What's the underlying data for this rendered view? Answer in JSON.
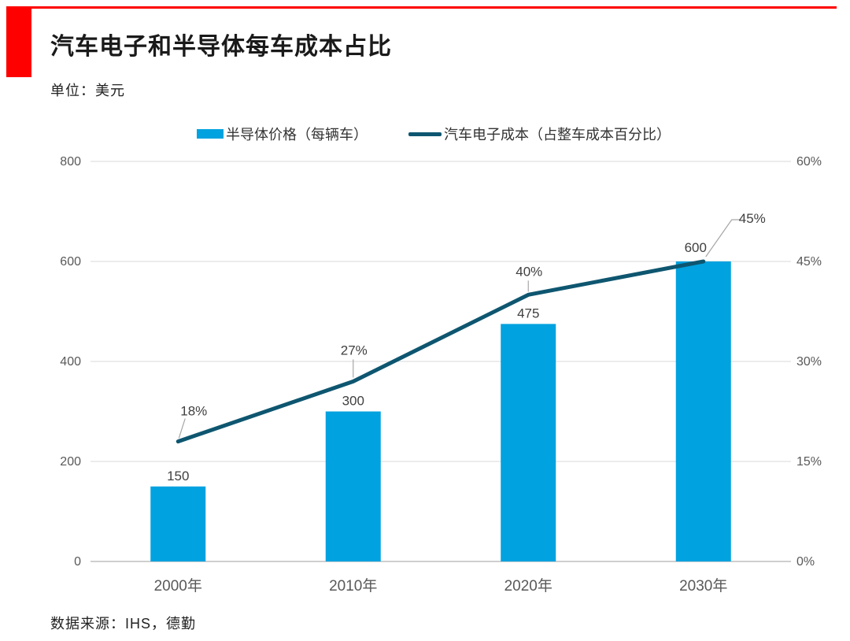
{
  "page": {
    "title": "汽车电子和半导体每车成本占比",
    "unit_label": "单位：美元",
    "source": "数据来源：IHS，德勤"
  },
  "legend": {
    "items": [
      {
        "swatch": "bar-swatch",
        "label": "半导体价格（每辆车）"
      },
      {
        "swatch": "line-swatch",
        "label": "汽车电子成本（占整车成本百分比）"
      }
    ]
  },
  "colors": {
    "accent_red": "#fe0000",
    "bar_blue": "#00a2df",
    "line_teal": "#0e5670",
    "grid": "#d9d9d9",
    "baseline": "#bfbfbf",
    "axis_text": "#595959",
    "label_text": "#404040",
    "leader": "#a6a6a6"
  },
  "chart_data": {
    "type": "combo",
    "title": "汽车电子和半导体每车成本占比",
    "unit": "美元",
    "categories": [
      "2000年",
      "2010年",
      "2020年",
      "2030年"
    ],
    "series": [
      {
        "name": "半导体价格（每辆车）",
        "type": "bar",
        "axis": "left",
        "values": [
          150,
          300,
          475,
          600
        ]
      },
      {
        "name": "汽车电子成本（占整车成本百分比）",
        "type": "line",
        "axis": "right",
        "values_pct": [
          18,
          27,
          40,
          45
        ],
        "point_labels": [
          "18%",
          "27%",
          "40%",
          "45%"
        ]
      }
    ],
    "left_axis": {
      "ticks": [
        800,
        600,
        400,
        200,
        0
      ],
      "min": 0,
      "max": 800
    },
    "right_axis": {
      "ticks": [
        "60%",
        "45%",
        "30%",
        "15%",
        "0%"
      ],
      "min": 0,
      "max": 60
    },
    "grid": "horizontal",
    "legend_position": "top-center",
    "source": "数据来源：IHS，德勤"
  }
}
